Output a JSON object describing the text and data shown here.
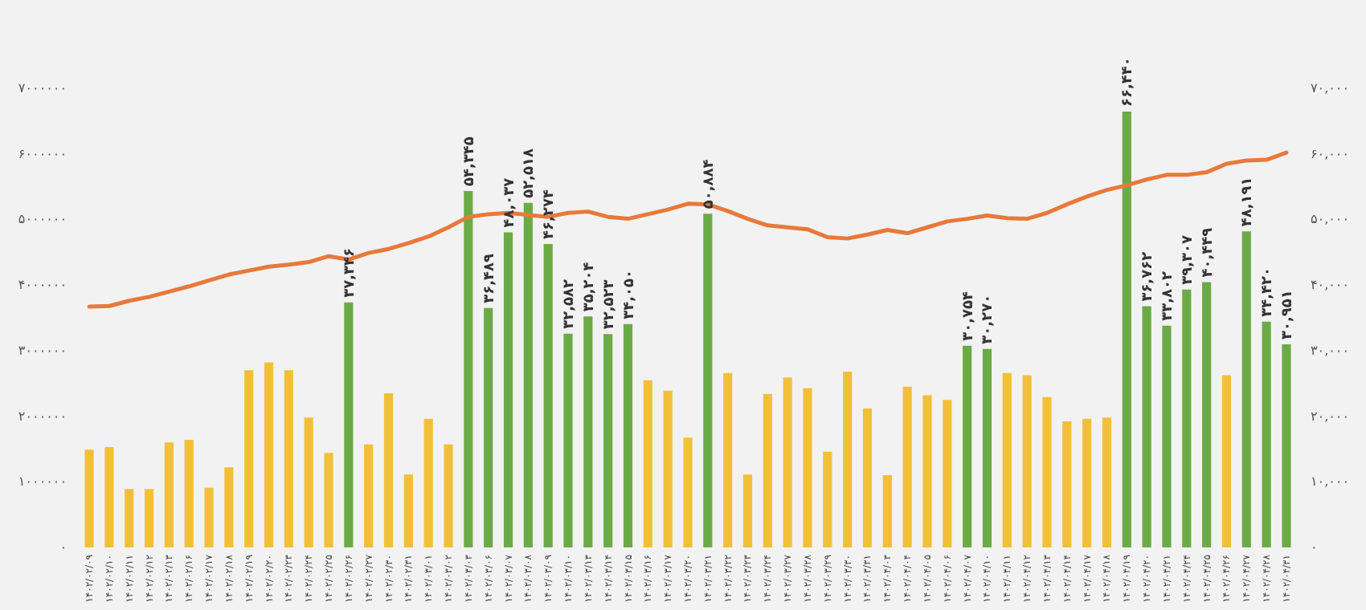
{
  "chart_data": {
    "type": "bar",
    "categories": [
      "۱۴۰۲/۰۲/۰۹",
      "۱۴۰۲/۰۲/۱۰",
      "۱۴۰۲/۰۲/۱۱",
      "۱۴۰۲/۰۲/۱۲",
      "۱۴۰۲/۰۲/۱۳",
      "۱۴۰۲/۰۲/۱۶",
      "۱۴۰۲/۰۲/۱۷",
      "۱۴۰۲/۰۲/۱۸",
      "۱۴۰۲/۰۲/۱۹",
      "۱۴۰۲/۰۲/۲۰",
      "۱۴۰۲/۰۲/۲۳",
      "۱۴۰۲/۰۲/۲۴",
      "۱۴۰۲/۰۲/۲۵",
      "۱۴۰۲/۰۲/۲۶",
      "۱۴۰۲/۰۲/۲۷",
      "۱۴۰۲/۰۲/۳۰",
      "۱۴۰۲/۰۲/۳۱",
      "۱۴۰۲/۰۳/۰۱",
      "۱۴۰۲/۰۳/۰۲",
      "۱۴۰۲/۰۳/۰۳",
      "۱۴۰۲/۰۳/۰۶",
      "۱۴۰۲/۰۳/۰۷",
      "۱۴۰۲/۰۳/۰۸",
      "۱۴۰۲/۰۳/۰۹",
      "۱۴۰۲/۰۳/۱۰",
      "۱۴۰۲/۰۳/۱۳",
      "۱۴۰۲/۰۳/۱۴",
      "۱۴۰۲/۰۳/۱۵",
      "۱۴۰۲/۰۳/۱۶",
      "۱۴۰۲/۰۳/۱۷",
      "۱۴۰۲/۰۳/۲۰",
      "۱۴۰۲/۰۳/۲۱",
      "۱۴۰۲/۰۳/۲۲",
      "۱۴۰۲/۰۳/۲۳",
      "۱۴۰۲/۰۳/۲۴",
      "۱۴۰۲/۰۳/۲۷",
      "۱۴۰۲/۰۳/۲۸",
      "۱۴۰۲/۰۳/۲۹",
      "۱۴۰۲/۰۳/۳۰",
      "۱۴۰۲/۰۳/۳۱",
      "۱۴۰۲/۰۴/۰۳",
      "۱۴۰۲/۰۴/۰۴",
      "۱۴۰۲/۰۴/۰۵",
      "۱۴۰۲/۰۴/۰۶",
      "۱۴۰۲/۰۴/۰۷",
      "۱۴۰۲/۰۴/۱۰",
      "۱۴۰۲/۰۴/۱۱",
      "۱۴۰۲/۰۴/۱۲",
      "۱۴۰۲/۰۴/۱۳",
      "۱۴۰۲/۰۴/۱۴",
      "۱۴۰۲/۰۴/۱۷",
      "۱۴۰۲/۰۴/۱۸",
      "۱۴۰۲/۰۴/۱۹",
      "۱۴۰۲/۰۴/۲۰",
      "۱۴۰۲/۰۴/۲۱",
      "۱۴۰۲/۰۴/۲۴",
      "۱۴۰۲/۰۴/۲۵",
      "۱۴۰۲/۰۴/۲۶",
      "۱۴۰۲/۰۴/۲۷",
      "۱۴۰۲/۰۴/۲۸",
      "۱۴۰۲/۰۴/۳۱"
    ],
    "series": [
      {
        "axis": "y2",
        "values": [
          14900,
          15300,
          8900,
          8900,
          16000,
          16400,
          9100,
          12200,
          27000,
          28200,
          27000,
          19800,
          14400,
          37346,
          15700,
          23500,
          11100,
          19600,
          15700,
          54345,
          36489,
          48037,
          52518,
          46274,
          32582,
          35204,
          32523,
          34050,
          25500,
          23900,
          16750,
          50884,
          26600,
          11100,
          23400,
          25900,
          24300,
          14600,
          26800,
          21200,
          11000,
          24500,
          23200,
          22500,
          30754,
          30270,
          26600,
          26250,
          22900,
          19200,
          19600,
          19800,
          66440,
          36762,
          33802,
          39307,
          40449,
          26250,
          48191,
          34420,
          30951
        ],
        "colors": [
          "#f2c038",
          "#f2c038",
          "#f2c038",
          "#f2c038",
          "#f2c038",
          "#f2c038",
          "#f2c038",
          "#f2c038",
          "#f2c038",
          "#f2c038",
          "#f2c038",
          "#f2c038",
          "#f2c038",
          "#6aab46",
          "#f2c038",
          "#f2c038",
          "#f2c038",
          "#f2c038",
          "#f2c038",
          "#6aab46",
          "#6aab46",
          "#6aab46",
          "#6aab46",
          "#6aab46",
          "#6aab46",
          "#6aab46",
          "#6aab46",
          "#6aab46",
          "#f2c038",
          "#f2c038",
          "#f2c038",
          "#6aab46",
          "#f2c038",
          "#f2c038",
          "#f2c038",
          "#f2c038",
          "#f2c038",
          "#f2c038",
          "#f2c038",
          "#f2c038",
          "#f2c038",
          "#f2c038",
          "#f2c038",
          "#f2c038",
          "#6aab46",
          "#6aab46",
          "#f2c038",
          "#f2c038",
          "#f2c038",
          "#f2c038",
          "#f2c038",
          "#f2c038",
          "#6aab46",
          "#6aab46",
          "#6aab46",
          "#6aab46",
          "#6aab46",
          "#f2c038",
          "#6aab46",
          "#6aab46",
          "#6aab46"
        ],
        "value_labels": [
          null,
          null,
          null,
          null,
          null,
          null,
          null,
          null,
          null,
          null,
          null,
          null,
          null,
          "۳۷,۳۴۶",
          null,
          null,
          null,
          null,
          null,
          "۵۴,۳۴۵",
          "۳۶,۴۸۹",
          "۴۸,۰۳۷",
          "۵۲,۵۱۸",
          "۴۶,۲۷۴",
          "۳۲,۵۸۲",
          "۳۵,۲۰۴",
          "۳۲,۵۲۳",
          "۳۴,۰۵۰",
          null,
          null,
          null,
          "۵۰,۸۸۴",
          null,
          null,
          null,
          null,
          null,
          null,
          null,
          null,
          null,
          null,
          null,
          null,
          "۳۰,۷۵۴",
          "۳۰,۲۷۰",
          null,
          null,
          null,
          null,
          null,
          null,
          "۶۶,۴۴۰",
          "۳۶,۷۶۲",
          "۳۳,۸۰۲",
          "۳۹,۳۰۷",
          "۴۰,۴۴۹",
          null,
          "۴۸,۱۹۱",
          "۳۴,۴۲۰",
          "۳۰,۹۵۱"
        ]
      },
      {
        "type": "line",
        "axis": "y",
        "color": "#e8793a",
        "values": [
          3670000,
          3680000,
          3760000,
          3820000,
          3900000,
          3980000,
          4070000,
          4160000,
          4220000,
          4280000,
          4310000,
          4350000,
          4440000,
          4390000,
          4490000,
          4550000,
          4640000,
          4740000,
          4880000,
          5040000,
          5080000,
          5100000,
          5070000,
          5040000,
          5100000,
          5120000,
          5040000,
          5010000,
          5080000,
          5150000,
          5240000,
          5230000,
          5130000,
          5010000,
          4910000,
          4880000,
          4850000,
          4730000,
          4710000,
          4770000,
          4840000,
          4790000,
          4880000,
          4970000,
          5010000,
          5060000,
          5020000,
          5010000,
          5100000,
          5230000,
          5350000,
          5450000,
          5520000,
          5610000,
          5680000,
          5680000,
          5720000,
          5850000,
          5900000,
          5910000,
          6020000
        ]
      }
    ],
    "ylim": [
      0,
      7000000
    ],
    "yticks": [
      {
        "value": 0,
        "label": "۰"
      },
      {
        "value": 1000000,
        "label": "۱۰۰۰۰۰۰"
      },
      {
        "value": 2000000,
        "label": "۲۰۰۰۰۰۰"
      },
      {
        "value": 3000000,
        "label": "۳۰۰۰۰۰۰"
      },
      {
        "value": 4000000,
        "label": "۴۰۰۰۰۰۰"
      },
      {
        "value": 5000000,
        "label": "۵۰۰۰۰۰۰"
      },
      {
        "value": 6000000,
        "label": "۶۰۰۰۰۰۰"
      },
      {
        "value": 7000000,
        "label": "۷۰۰۰۰۰۰"
      }
    ],
    "y2lim": [
      0,
      70000
    ],
    "y2ticks": [
      {
        "value": 0,
        "label": "۰"
      },
      {
        "value": 10000,
        "label": "۱۰,۰۰۰"
      },
      {
        "value": 20000,
        "label": "۲۰,۰۰۰"
      },
      {
        "value": 30000,
        "label": "۳۰,۰۰۰"
      },
      {
        "value": 40000,
        "label": "۴۰,۰۰۰"
      },
      {
        "value": 50000,
        "label": "۵۰,۰۰۰"
      },
      {
        "value": 60000,
        "label": "۶۰,۰۰۰"
      },
      {
        "value": 70000,
        "label": "۷۰,۰۰۰"
      }
    ],
    "grid": false,
    "legend": false
  }
}
